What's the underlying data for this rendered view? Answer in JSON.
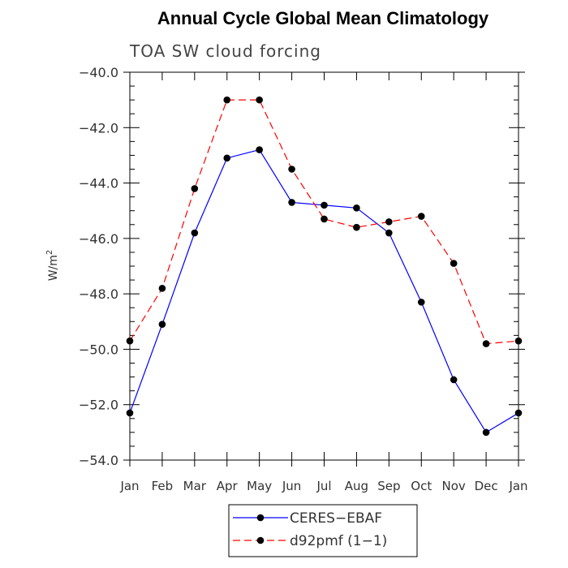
{
  "chart_data": {
    "type": "line",
    "title": "Annual Cycle Global Mean Climatology",
    "subtitle": "TOA SW cloud forcing",
    "ylabel": "W/m",
    "ylabel_sup": "2",
    "categories": [
      "Jan",
      "Feb",
      "Mar",
      "Apr",
      "May",
      "Jun",
      "Jul",
      "Aug",
      "Sep",
      "Oct",
      "Nov",
      "Dec",
      "Jan"
    ],
    "ylim": [
      -54.0,
      -40.0
    ],
    "yticks": [
      -54.0,
      -52.0,
      -50.0,
      -48.0,
      -46.0,
      -44.0,
      -42.0,
      -40.0
    ],
    "ytick_labels": [
      "−54.0",
      "−52.0",
      "−50.0",
      "−48.0",
      "−46.0",
      "−44.0",
      "−42.0",
      "−40.0"
    ],
    "series": [
      {
        "name": "CERES−EBAF",
        "color": "#0000ff",
        "dash": "solid",
        "values": [
          -52.3,
          -49.1,
          -45.8,
          -43.1,
          -42.8,
          -44.7,
          -44.8,
          -44.9,
          -45.8,
          -48.3,
          -51.1,
          -53.0,
          -52.3
        ]
      },
      {
        "name": "d92pmf (1−1)",
        "color": "#ff0000",
        "dash": "dashed",
        "values": [
          -49.7,
          -47.8,
          -44.2,
          -41.0,
          -41.0,
          -43.5,
          -45.3,
          -45.6,
          -45.4,
          -45.2,
          -46.9,
          -49.8,
          -49.7
        ]
      }
    ],
    "legend_position": "bottom-center",
    "marker_color": "#000000"
  }
}
